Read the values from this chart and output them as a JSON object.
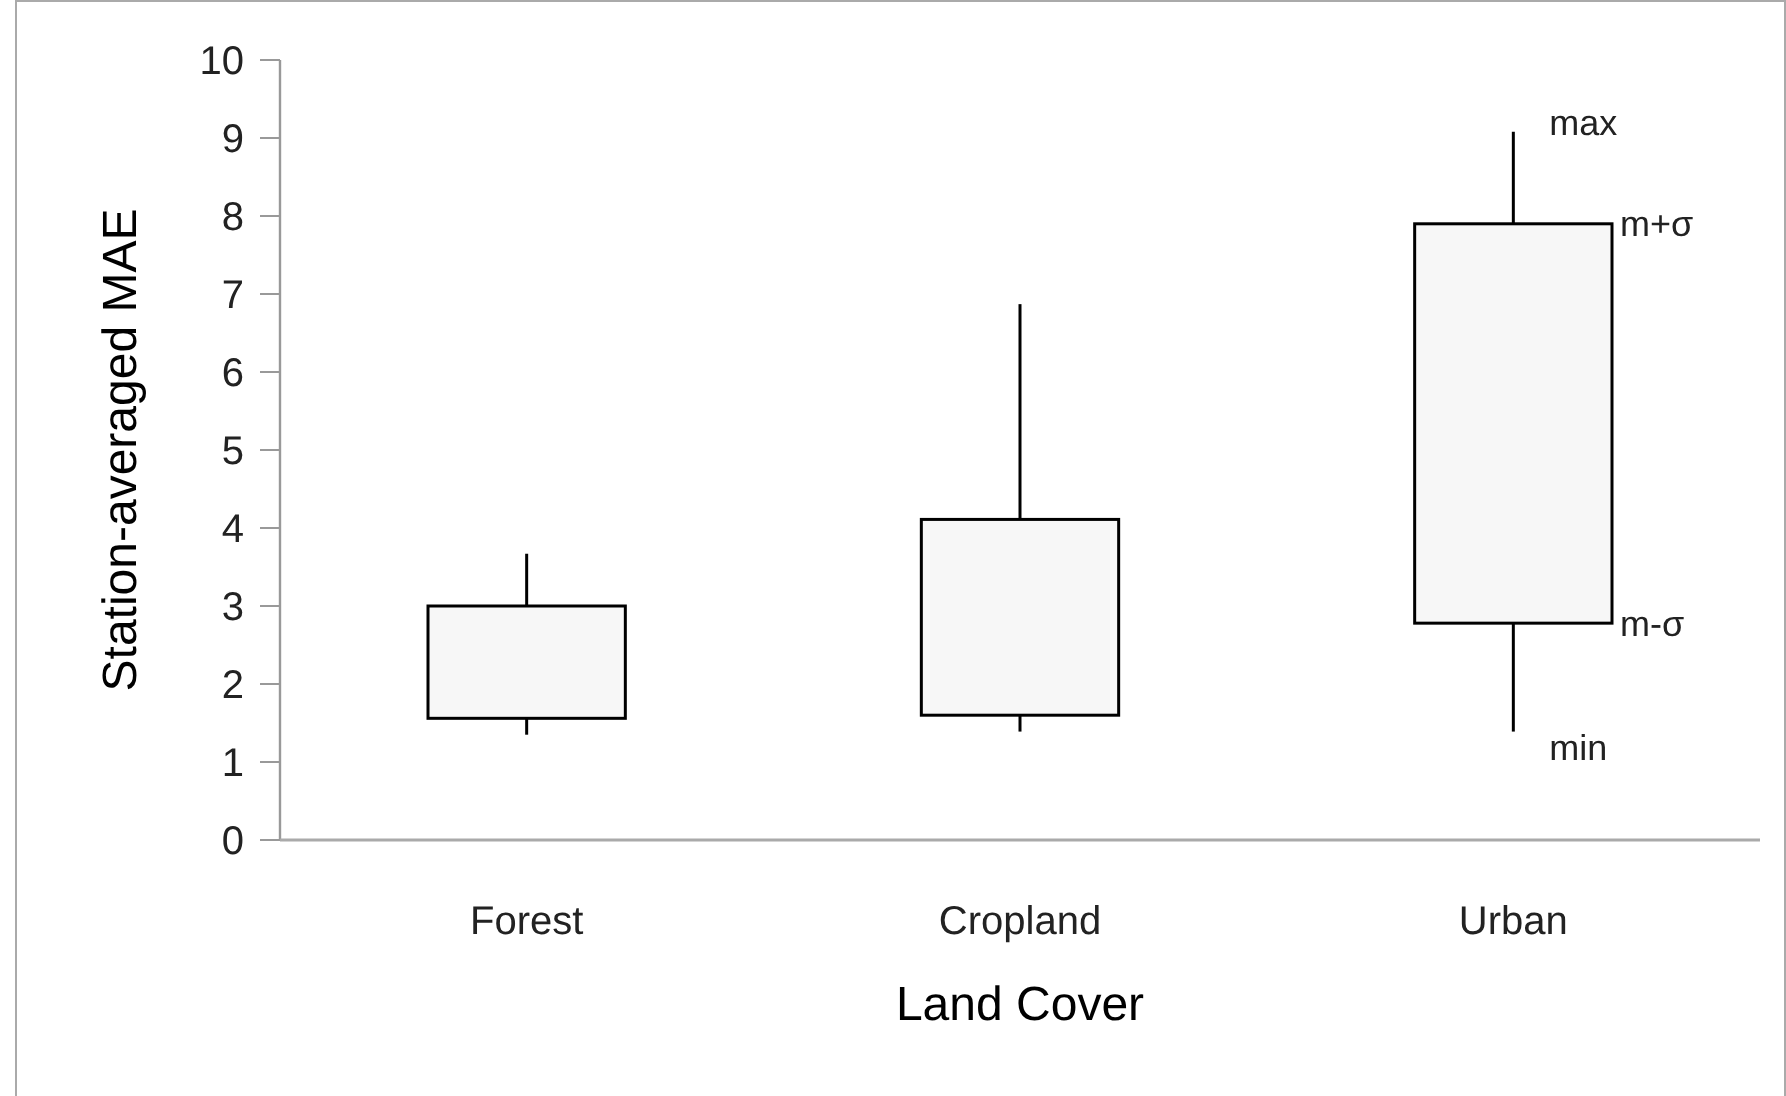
{
  "chart_data": {
    "type": "box",
    "xlabel": "Land Cover",
    "ylabel": "Station-averaged MAE",
    "categories": [
      "Forest",
      "Cropland",
      "Urban"
    ],
    "boxes": [
      {
        "low": 1.35,
        "q1": 1.56,
        "q3": 3.0,
        "high": 3.67
      },
      {
        "low": 1.39,
        "q1": 1.6,
        "q3": 4.11,
        "high": 6.87
      },
      {
        "low": 1.39,
        "q1": 2.78,
        "q3": 7.9,
        "high": 9.08
      }
    ],
    "color": "#f7f7f7",
    "ylim": [
      0,
      10
    ],
    "yticks": [
      0,
      1,
      2,
      3,
      4,
      5,
      6,
      7,
      8,
      9,
      10
    ],
    "grid": false,
    "annotations": [
      {
        "text": "max",
        "x": "Urban",
        "y": 9.08
      },
      {
        "text": "m+σ",
        "x": "Urban",
        "y": 7.9
      },
      {
        "text": "m-σ",
        "x": "Urban",
        "y": 2.78
      },
      {
        "text": "min",
        "x": "Urban",
        "y": 1.39
      }
    ]
  }
}
